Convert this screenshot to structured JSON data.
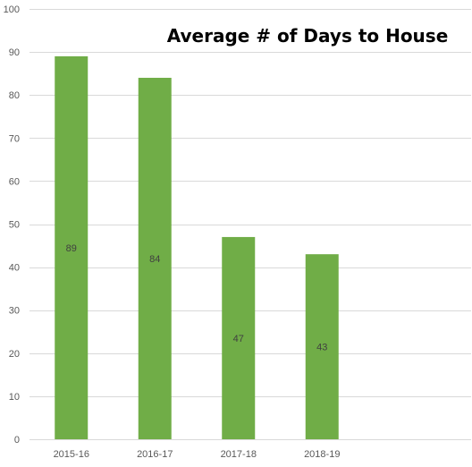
{
  "chart_data": {
    "type": "bar",
    "title": "Average # of Days to House",
    "categories": [
      "2015-16",
      "2016-17",
      "2017-18",
      "2018-19"
    ],
    "values": [
      89,
      84,
      47,
      43
    ],
    "ylim": [
      0,
      100
    ],
    "yticks": [
      0,
      10,
      20,
      30,
      40,
      50,
      60,
      70,
      80,
      90,
      100
    ],
    "xlabel": "",
    "ylabel": "",
    "grid": true,
    "legend": "none",
    "bar_color": "#70ad47"
  }
}
